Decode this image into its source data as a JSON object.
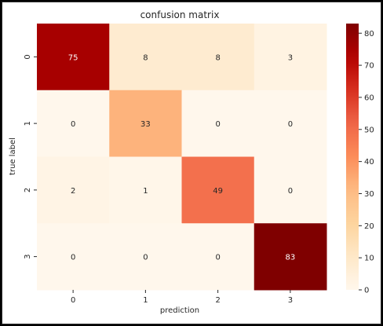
{
  "chart_data": {
    "type": "heatmap",
    "title": "confusion matrix",
    "xlabel": "prediction",
    "ylabel": "true label",
    "x_categories": [
      "0",
      "1",
      "2",
      "3"
    ],
    "y_categories": [
      "0",
      "1",
      "2",
      "3"
    ],
    "values": [
      [
        75,
        8,
        8,
        3
      ],
      [
        0,
        33,
        0,
        0
      ],
      [
        2,
        1,
        49,
        0
      ],
      [
        0,
        0,
        0,
        83
      ]
    ],
    "colormap": "OrRd",
    "color_range": [
      0,
      83
    ],
    "colorbar_ticks": [
      "0",
      "10",
      "20",
      "30",
      "40",
      "50",
      "60",
      "70",
      "80"
    ],
    "colorbar_tick_values": [
      0,
      10,
      20,
      30,
      40,
      50,
      60,
      70,
      80
    ],
    "text_colors": {
      "dark": "#262626",
      "light": "#ffffff"
    }
  }
}
